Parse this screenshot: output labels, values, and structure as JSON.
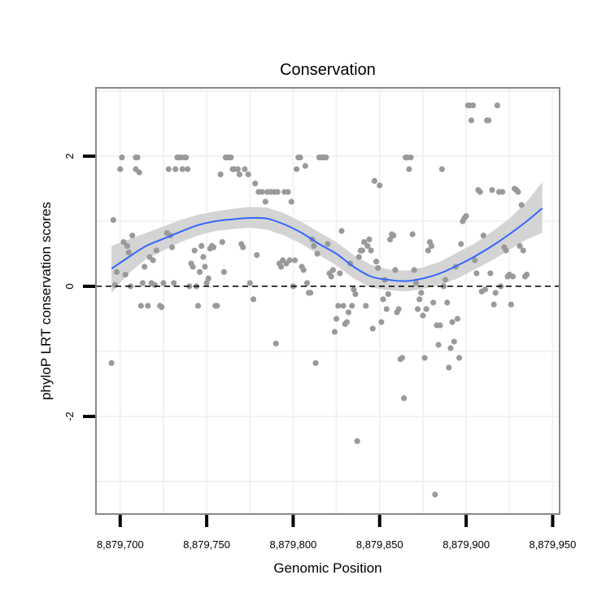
{
  "chart_data": {
    "type": "scatter",
    "title": "Conservation",
    "xlabel": "Genomic Position",
    "ylabel": "phyloP LRT conservation scores",
    "xlim": [
      8879686,
      8879954
    ],
    "ylim": [
      -3.5,
      3.05
    ],
    "x_ticks": [
      {
        "value": 8879700,
        "label": "8,879,700"
      },
      {
        "value": 8879750,
        "label": "8,879,750"
      },
      {
        "value": 8879800,
        "label": "8,879,800"
      },
      {
        "value": 8879850,
        "label": "8,879,850"
      },
      {
        "value": 8879900,
        "label": "8,879,900"
      },
      {
        "value": 8879950,
        "label": "8,879,950"
      }
    ],
    "y_ticks": [
      {
        "value": -2,
        "label": "-2"
      },
      {
        "value": 0,
        "label": "0"
      },
      {
        "value": 2,
        "label": "2"
      }
    ],
    "reference_line": {
      "y": 0,
      "style": "dashed"
    },
    "colors": {
      "points": "#9a9a9a",
      "smooth": "#3366ff",
      "band": "#d4d4d4",
      "panel_border": "#888888",
      "grid": "#f2f2f2",
      "refline": "#000000"
    },
    "series": [
      {
        "name": "phyloP LRT scores",
        "points": [
          [
            8879695,
            -1.18
          ],
          [
            8879696,
            1.02
          ],
          [
            8879697,
            0.02
          ],
          [
            8879698,
            0.22
          ],
          [
            8879700,
            1.8
          ],
          [
            8879701,
            1.98
          ],
          [
            8879702,
            0.68
          ],
          [
            8879703,
            0.18
          ],
          [
            8879704,
            0.62
          ],
          [
            8879705,
            0.52
          ],
          [
            8879706,
            0.0
          ],
          [
            8879707,
            0.78
          ],
          [
            8879709,
            1.98
          ],
          [
            8879710,
            1.98
          ],
          [
            8879709,
            1.8
          ],
          [
            8879711,
            1.75
          ],
          [
            8879712,
            -0.3
          ],
          [
            8879713,
            0.05
          ],
          [
            8879714,
            0.3
          ],
          [
            8879716,
            -0.3
          ],
          [
            8879717,
            0.45
          ],
          [
            8879718,
            0.05
          ],
          [
            8879719,
            0.4
          ],
          [
            8879720,
            0.02
          ],
          [
            8879721,
            0.55
          ],
          [
            8879723,
            -0.3
          ],
          [
            8879724,
            -0.32
          ],
          [
            8879725,
            0.05
          ],
          [
            8879727,
            0.82
          ],
          [
            8879728,
            1.8
          ],
          [
            8879729,
            0.78
          ],
          [
            8879730,
            0.6
          ],
          [
            8879731,
            0.05
          ],
          [
            8879732,
            1.8
          ],
          [
            8879733,
            1.98
          ],
          [
            8879734,
            1.98
          ],
          [
            8879735,
            1.98
          ],
          [
            8879736,
            1.8
          ],
          [
            8879737,
            1.98
          ],
          [
            8879738,
            1.98
          ],
          [
            8879739,
            1.8
          ],
          [
            8879740,
            0.0
          ],
          [
            8879741,
            0.35
          ],
          [
            8879742,
            0.3
          ],
          [
            8879743,
            0.55
          ],
          [
            8879744,
            0.0
          ],
          [
            8879745,
            -0.3
          ],
          [
            8879746,
            0.22
          ],
          [
            8879747,
            0.62
          ],
          [
            8879748,
            0.45
          ],
          [
            8879749,
            0.3
          ],
          [
            8879750,
            0.05
          ],
          [
            8879751,
            0.12
          ],
          [
            8879752,
            0.58
          ],
          [
            8879753,
            0.62
          ],
          [
            8879754,
            0.6
          ],
          [
            8879755,
            -0.3
          ],
          [
            8879756,
            -0.3
          ],
          [
            8879758,
            1.72
          ],
          [
            8879759,
            0.68
          ],
          [
            8879760,
            0.22
          ],
          [
            8879761,
            1.98
          ],
          [
            8879762,
            1.98
          ],
          [
            8879763,
            1.98
          ],
          [
            8879764,
            1.98
          ],
          [
            8879765,
            1.8
          ],
          [
            8879766,
            1.8
          ],
          [
            8879768,
            1.8
          ],
          [
            8879769,
            1.72
          ],
          [
            8879770,
            0.65
          ],
          [
            8879771,
            0.6
          ],
          [
            8879772,
            1.8
          ],
          [
            8879774,
            1.72
          ],
          [
            8879775,
            0.05
          ],
          [
            8879777,
            -0.2
          ],
          [
            8879778,
            1.58
          ],
          [
            8879779,
            0.48
          ],
          [
            8879780,
            1.45
          ],
          [
            8879782,
            1.45
          ],
          [
            8879784,
            1.3
          ],
          [
            8879785,
            1.45
          ],
          [
            8879787,
            1.45
          ],
          [
            8879789,
            1.45
          ],
          [
            8879790,
            -0.88
          ],
          [
            8879791,
            1.45
          ],
          [
            8879792,
            0.35
          ],
          [
            8879793,
            0.3
          ],
          [
            8879794,
            0.4
          ],
          [
            8879795,
            1.45
          ],
          [
            8879796,
            0.35
          ],
          [
            8879797,
            1.45
          ],
          [
            8879798,
            0.4
          ],
          [
            8879799,
            1.3
          ],
          [
            8879800,
            0.0
          ],
          [
            8879801,
            0.4
          ],
          [
            8879802,
            1.8
          ],
          [
            8879803,
            1.98
          ],
          [
            8879804,
            1.98
          ],
          [
            8879805,
            0.3
          ],
          [
            8879806,
            0.25
          ],
          [
            8879807,
            1.85
          ],
          [
            8879808,
            0.05
          ],
          [
            8879809,
            -0.1
          ],
          [
            8879810,
            -0.1
          ],
          [
            8879811,
            0.72
          ],
          [
            8879812,
            0.62
          ],
          [
            8879813,
            -1.18
          ],
          [
            8879814,
            0.5
          ],
          [
            8879815,
            1.98
          ],
          [
            8879816,
            1.98
          ],
          [
            8879817,
            1.98
          ],
          [
            8879818,
            1.98
          ],
          [
            8879819,
            1.98
          ],
          [
            8879820,
            0.65
          ],
          [
            8879821,
            0.2
          ],
          [
            8879822,
            0.15
          ],
          [
            8879823,
            0.25
          ],
          [
            8879824,
            -0.7
          ],
          [
            8879825,
            -0.5
          ],
          [
            8879826,
            -0.3
          ],
          [
            8879827,
            0.2
          ],
          [
            8879828,
            0.85
          ],
          [
            8879829,
            -0.3
          ],
          [
            8879830,
            -0.58
          ],
          [
            8879831,
            -0.55
          ],
          [
            8879832,
            -0.4
          ],
          [
            8879833,
            0.35
          ],
          [
            8879834,
            -0.3
          ],
          [
            8879835,
            -0.05
          ],
          [
            8879836,
            -0.12
          ],
          [
            8879837,
            -2.38
          ],
          [
            8879838,
            0.45
          ],
          [
            8879839,
            0.55
          ],
          [
            8879840,
            0.55
          ],
          [
            8879841,
            0.68
          ],
          [
            8879842,
            -0.3
          ],
          [
            8879843,
            0.62
          ],
          [
            8879844,
            0.72
          ],
          [
            8879845,
            0.55
          ],
          [
            8879846,
            -0.65
          ],
          [
            8879847,
            1.62
          ],
          [
            8879848,
            0.38
          ],
          [
            8879849,
            0.28
          ],
          [
            8879850,
            1.55
          ],
          [
            8879851,
            -0.55
          ],
          [
            8879852,
            -0.2
          ],
          [
            8879853,
            0.1
          ],
          [
            8879854,
            -0.35
          ],
          [
            8879855,
            -0.12
          ],
          [
            8879856,
            0.72
          ],
          [
            8879857,
            0.8
          ],
          [
            8879858,
            0.78
          ],
          [
            8879859,
            0.25
          ],
          [
            8879860,
            -0.4
          ],
          [
            8879861,
            -0.35
          ],
          [
            8879862,
            -1.12
          ],
          [
            8879863,
            -1.1
          ],
          [
            8879864,
            -1.72
          ],
          [
            8879865,
            1.98
          ],
          [
            8879866,
            1.98
          ],
          [
            8879867,
            1.8
          ],
          [
            8879868,
            1.98
          ],
          [
            8879869,
            0.8
          ],
          [
            8879870,
            0.25
          ],
          [
            8879871,
            0.05
          ],
          [
            8879872,
            -0.35
          ],
          [
            8879873,
            -0.2
          ],
          [
            8879874,
            -0.1
          ],
          [
            8879875,
            -0.45
          ],
          [
            8879876,
            -1.1
          ],
          [
            8879877,
            -0.35
          ],
          [
            8879878,
            0.55
          ],
          [
            8879879,
            0.68
          ],
          [
            8879880,
            0.62
          ],
          [
            8879881,
            -0.25
          ],
          [
            8879882,
            -3.2
          ],
          [
            8879883,
            -0.6
          ],
          [
            8879884,
            -0.9
          ],
          [
            8879885,
            -0.6
          ],
          [
            8879886,
            1.8
          ],
          [
            8879887,
            0.0
          ],
          [
            8879888,
            0.1
          ],
          [
            8879889,
            -0.25
          ],
          [
            8879890,
            -1.25
          ],
          [
            8879891,
            -0.95
          ],
          [
            8879892,
            -0.55
          ],
          [
            8879893,
            -0.85
          ],
          [
            8879894,
            0.3
          ],
          [
            8879895,
            -0.5
          ],
          [
            8879896,
            -1.1
          ],
          [
            8879897,
            0.65
          ],
          [
            8879898,
            1.0
          ],
          [
            8879899,
            1.05
          ],
          [
            8879900,
            1.08
          ],
          [
            8879901,
            2.78
          ],
          [
            8879902,
            2.78
          ],
          [
            8879903,
            2.55
          ],
          [
            8879904,
            2.78
          ],
          [
            8879905,
            0.4
          ],
          [
            8879906,
            0.2
          ],
          [
            8879907,
            1.48
          ],
          [
            8879908,
            1.45
          ],
          [
            8879909,
            -0.08
          ],
          [
            8879910,
            0.78
          ],
          [
            8879911,
            -0.05
          ],
          [
            8879912,
            2.55
          ],
          [
            8879913,
            2.55
          ],
          [
            8879914,
            0.2
          ],
          [
            8879915,
            1.48
          ],
          [
            8879916,
            -0.28
          ],
          [
            8879917,
            -0.1
          ],
          [
            8879918,
            2.78
          ],
          [
            8879919,
            1.45
          ],
          [
            8879920,
            0.0
          ],
          [
            8879921,
            1.45
          ],
          [
            8879922,
            0.6
          ],
          [
            8879923,
            0.55
          ],
          [
            8879924,
            0.15
          ],
          [
            8879925,
            0.18
          ],
          [
            8879926,
            -0.28
          ],
          [
            8879927,
            0.15
          ],
          [
            8879928,
            1.5
          ],
          [
            8879929,
            1.48
          ],
          [
            8879930,
            1.45
          ],
          [
            8879931,
            0.62
          ],
          [
            8879932,
            1.25
          ],
          [
            8879933,
            0.55
          ],
          [
            8879934,
            0.15
          ],
          [
            8879935,
            0.18
          ]
        ]
      },
      {
        "name": "loess fit",
        "type": "line",
        "x": [
          8879695,
          8879705,
          8879715,
          8879725,
          8879735,
          8879745,
          8879755,
          8879765,
          8879775,
          8879785,
          8879795,
          8879805,
          8879815,
          8879825,
          8879835,
          8879845,
          8879855,
          8879865,
          8879875,
          8879885,
          8879895,
          8879905,
          8879915,
          8879925,
          8879935,
          8879944
        ],
        "y": [
          0.27,
          0.45,
          0.62,
          0.73,
          0.84,
          0.94,
          1.0,
          1.03,
          1.05,
          1.04,
          0.95,
          0.82,
          0.65,
          0.5,
          0.3,
          0.15,
          0.1,
          0.08,
          0.12,
          0.2,
          0.32,
          0.46,
          0.62,
          0.8,
          1.0,
          1.2
        ],
        "lower": [
          -0.1,
          0.2,
          0.42,
          0.55,
          0.68,
          0.78,
          0.85,
          0.88,
          0.9,
          0.87,
          0.78,
          0.65,
          0.48,
          0.32,
          0.12,
          -0.02,
          -0.06,
          -0.08,
          -0.04,
          0.02,
          0.12,
          0.26,
          0.4,
          0.56,
          0.72,
          0.82
        ],
        "upper": [
          0.62,
          0.72,
          0.82,
          0.92,
          1.02,
          1.1,
          1.15,
          1.19,
          1.22,
          1.21,
          1.12,
          0.99,
          0.83,
          0.68,
          0.48,
          0.33,
          0.26,
          0.24,
          0.29,
          0.38,
          0.52,
          0.66,
          0.84,
          1.04,
          1.3,
          1.6
        ]
      }
    ]
  }
}
